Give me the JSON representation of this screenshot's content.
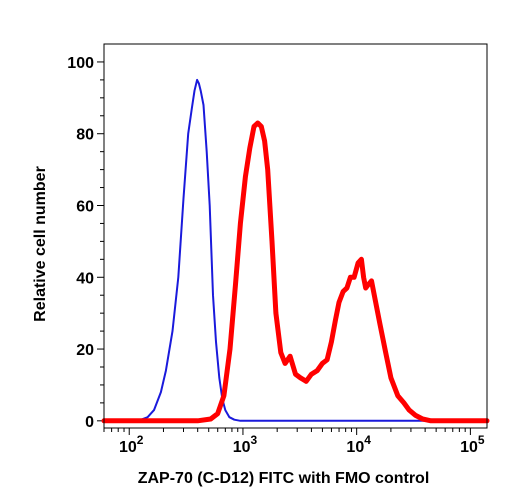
{
  "chart_data": {
    "type": "line",
    "title": "",
    "xlabel": "ZAP-70 (C-D12) FITC with FMO control",
    "ylabel": "Relative cell number",
    "x_scale": "log",
    "xlim": [
      60,
      140000
    ],
    "ylim": [
      -2,
      105
    ],
    "x_ticks": [
      {
        "value": 100,
        "base": "10",
        "exp": "2"
      },
      {
        "value": 1000,
        "base": "10",
        "exp": "3"
      },
      {
        "value": 10000,
        "base": "10",
        "exp": "4"
      },
      {
        "value": 100000,
        "base": "10",
        "exp": "5"
      }
    ],
    "y_ticks": [
      0,
      20,
      40,
      60,
      80,
      100
    ],
    "grid": false,
    "legend": "none",
    "series": [
      {
        "color": "#1a1adc",
        "x": [
          60,
          120,
          145,
          165,
          190,
          210,
          240,
          270,
          300,
          330,
          355,
          375,
          395,
          410,
          425,
          450,
          480,
          510,
          545,
          580,
          620,
          660,
          700,
          760,
          840,
          950,
          1100,
          140000
        ],
        "y": [
          0,
          0,
          1,
          3,
          8,
          14,
          25,
          40,
          62,
          80,
          87,
          92,
          95,
          94,
          92,
          88,
          75,
          60,
          35,
          22,
          12,
          6,
          3,
          1,
          0.3,
          0,
          0,
          0
        ]
      },
      {
        "color": "#ff0000",
        "x": [
          60,
          400,
          520,
          600,
          680,
          770,
          860,
          950,
          1050,
          1150,
          1250,
          1350,
          1450,
          1550,
          1650,
          1800,
          1950,
          2150,
          2350,
          2600,
          2900,
          3200,
          3600,
          4000,
          4500,
          5000,
          5500,
          6000,
          6500,
          7000,
          7600,
          8200,
          8800,
          9500,
          10300,
          11000,
          11500,
          12000,
          12700,
          13500,
          14500,
          16000,
          18000,
          20000,
          23000,
          26000,
          29000,
          33000,
          38000,
          45000,
          55000,
          70000,
          140000
        ],
        "y": [
          0,
          0,
          0.5,
          2,
          7,
          20,
          38,
          55,
          68,
          76,
          82,
          83,
          82,
          78,
          70,
          50,
          30,
          19,
          16,
          18,
          13,
          12,
          11,
          13,
          14,
          16,
          17,
          22,
          28,
          33,
          36,
          37,
          40,
          40,
          44,
          45,
          40,
          37,
          38,
          39,
          34,
          27,
          19,
          12,
          7,
          5,
          3,
          1.5,
          0.5,
          0,
          0,
          0,
          0
        ]
      }
    ]
  }
}
